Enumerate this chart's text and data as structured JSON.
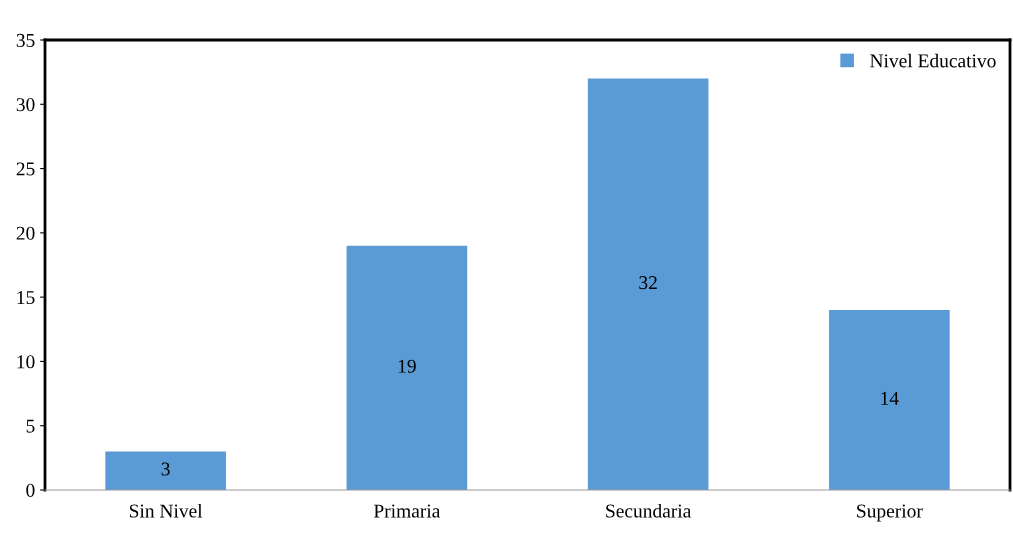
{
  "chart_data": {
    "type": "bar",
    "categories": [
      "Sin Nivel",
      "Primaria",
      "Secundaria",
      "Superior"
    ],
    "series": [
      {
        "name": "Nivel Educativo",
        "color": "#5b9bd5",
        "values": [
          3,
          19,
          32,
          14
        ]
      }
    ],
    "ylim": [
      0,
      35
    ],
    "yticks": [
      0,
      5,
      10,
      15,
      20,
      25,
      30,
      35
    ],
    "data_labels": true,
    "legend": "top right",
    "grid": false
  }
}
